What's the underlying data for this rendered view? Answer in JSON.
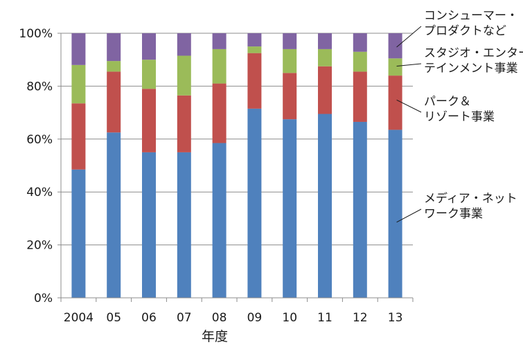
{
  "chart_data": {
    "type": "bar",
    "stacked": true,
    "percent": true,
    "title": "",
    "xlabel": "年度",
    "ylabel": "",
    "ylim": [
      0,
      100
    ],
    "yticks": [
      "0%",
      "20%",
      "40%",
      "60%",
      "80%",
      "100%"
    ],
    "categories": [
      "2004",
      "05",
      "06",
      "07",
      "08",
      "09",
      "10",
      "11",
      "12",
      "13"
    ],
    "series": [
      {
        "name": "メディア・ネットワーク事業",
        "label_lines": [
          "メディア・ネット",
          "ワーク事業"
        ],
        "color": "#4f81bd",
        "values": [
          48.5,
          62.5,
          55,
          55,
          58.5,
          71.5,
          67.5,
          69.5,
          66.5,
          63.5
        ]
      },
      {
        "name": "パーク＆リゾート事業",
        "label_lines": [
          "パーク＆",
          "リゾート事業"
        ],
        "color": "#c0504d",
        "values": [
          25,
          23,
          24,
          21.5,
          22.5,
          21,
          17.5,
          18,
          19,
          20.5
        ]
      },
      {
        "name": "スタジオ・エンターテインメント事業",
        "label_lines": [
          "スタジオ・エンター",
          "テインメント事業"
        ],
        "color": "#9bbb59",
        "values": [
          14.5,
          4,
          11,
          15,
          13,
          2.5,
          9,
          6.5,
          7.5,
          6.5
        ]
      },
      {
        "name": "コンシューマー・プロダクトなど",
        "label_lines": [
          "コンシューマー・",
          "プロダクトなど"
        ],
        "color": "#8064a2",
        "values": [
          12,
          10.5,
          10,
          8.5,
          6,
          5,
          6,
          6,
          7,
          9.5
        ]
      }
    ]
  }
}
